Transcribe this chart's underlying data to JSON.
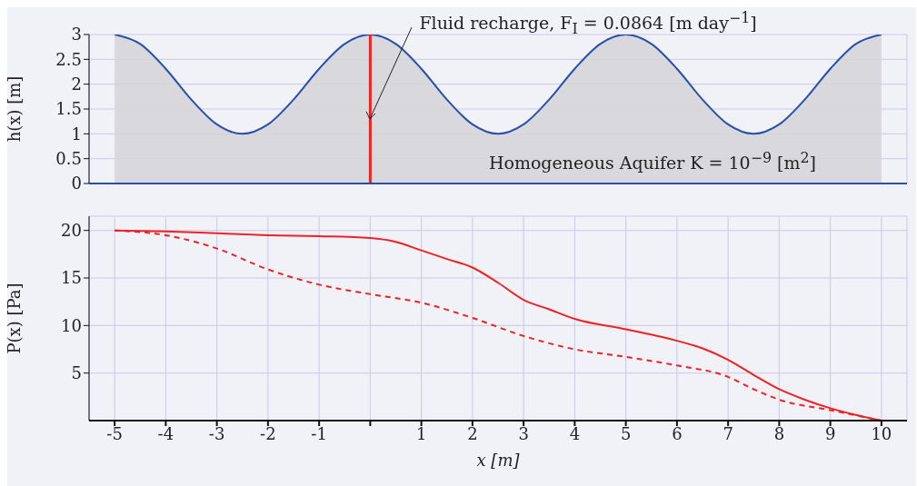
{
  "chart_data": [
    {
      "type": "area",
      "ylabel": "h(x) [m]",
      "xlim": [
        -5.5,
        10.5
      ],
      "ylim": [
        0,
        3
      ],
      "yticks": [
        0,
        0.5,
        1,
        1.5,
        2,
        2.5,
        3
      ],
      "tick_labels": "y",
      "grid": true,
      "x": [
        -5,
        -4.5,
        -4,
        -3.5,
        -3,
        -2.5,
        -2,
        -1.5,
        -1,
        -0.5,
        0,
        0.5,
        1,
        1.5,
        2,
        2.5,
        3,
        3.5,
        4,
        4.5,
        5,
        5.5,
        6,
        6.5,
        7,
        7.5,
        8,
        8.5,
        9,
        9.5,
        10
      ],
      "series": [
        {
          "color": "#2a4fa8",
          "values": [
            3,
            2.81,
            2.31,
            1.69,
            1.19,
            1,
            1.19,
            1.69,
            2.31,
            2.81,
            3,
            2.81,
            2.31,
            1.69,
            1.19,
            1,
            1.19,
            1.69,
            2.31,
            2.81,
            3,
            2.81,
            2.31,
            1.69,
            1.19,
            1,
            1.19,
            1.69,
            2.31,
            2.81,
            3
          ]
        }
      ],
      "ref_lines": [
        {
          "axis": "x",
          "value": 0,
          "color": "#ee2222"
        }
      ],
      "annotations": [
        {
          "text": "Fluid recharge, F$_{I}$ = 0.0864 [m day$^{−1}$]",
          "x": 0,
          "y": 1.3
        },
        "Homogeneous Aquifer K = 10$^{−9}$ [m$^{2}$]"
      ]
    },
    {
      "type": "line",
      "xlabel": "x [m]",
      "ylabel": "P(x) [Pa]",
      "xlim": [
        -5.5,
        10.5
      ],
      "ylim": [
        0,
        21.5
      ],
      "xticks": [
        -5,
        -4,
        -3,
        -2,
        -1,
        {
          "value": 0,
          "label": null
        },
        1,
        2,
        3,
        4,
        5,
        6,
        7,
        8,
        9,
        10
      ],
      "yticks": [
        5,
        10,
        15,
        20
      ],
      "grid": true,
      "series": [
        {
          "color": "#ee2222",
          "line_style": "solid",
          "x": [
            -5,
            -4,
            -3,
            -2,
            -1,
            0,
            0.5,
            1,
            1.5,
            2,
            2.5,
            3,
            3.5,
            4,
            5,
            6,
            6.5,
            7,
            7.5,
            8,
            8.5,
            9,
            9.5,
            10
          ],
          "values": [
            20,
            19.9,
            19.7,
            19.5,
            19.4,
            19.2,
            18.8,
            17.9,
            17,
            16.1,
            14.5,
            12.7,
            11.7,
            10.7,
            9.6,
            8.4,
            7.6,
            6.4,
            4.8,
            3.3,
            2.2,
            1.3,
            0.6,
            0
          ]
        },
        {
          "color": "#ee2222",
          "line_style": "dashed",
          "x": [
            -5,
            -4,
            -3,
            -2,
            -1,
            0,
            1,
            2,
            3,
            4,
            5,
            6,
            7,
            7.5,
            8,
            9,
            10
          ],
          "values": [
            20,
            19.5,
            18.1,
            15.9,
            14.3,
            13.3,
            12.4,
            10.8,
            8.9,
            7.5,
            6.7,
            5.8,
            4.6,
            3.3,
            2.2,
            1.1,
            0
          ]
        }
      ]
    }
  ]
}
